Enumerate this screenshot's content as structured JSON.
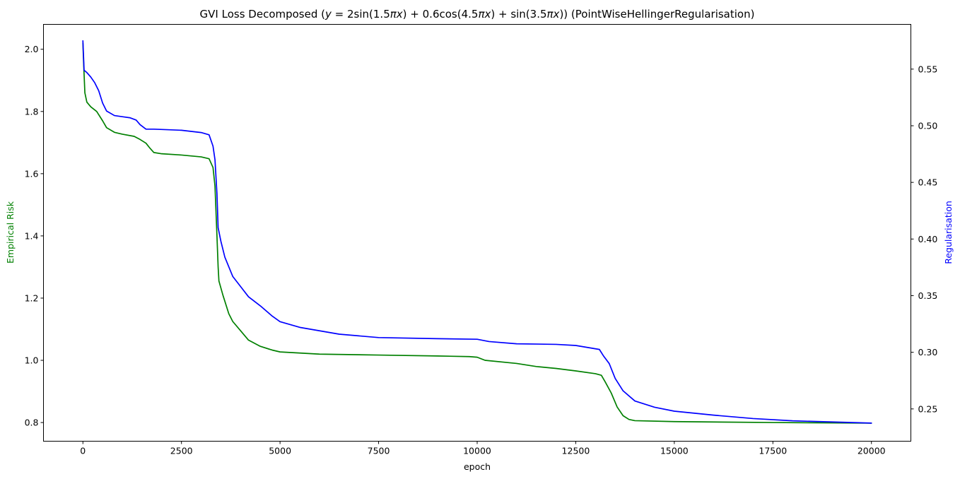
{
  "chart_data": {
    "type": "line",
    "title": "GVI Loss Decomposed ($y=2\\sin(1.5\\pi x)+0.6\\cos(4.5\\pi x)+\\sin(3.5\\pi x)$) (PointWiseHellingerRegularisation)",
    "title_display": {
      "prefix": "GVI Loss Decomposed (",
      "suffix": ") (PointWiseHellingerRegularisation)"
    },
    "xlabel": "epoch",
    "ylabel_left": "Empirical Risk",
    "ylabel_right": "Regularisation",
    "xlim": [
      -1000,
      21000
    ],
    "ylim_left": [
      0.74,
      2.08
    ],
    "ylim_right": [
      0.2215,
      0.5895
    ],
    "xticks": [
      0,
      2500,
      5000,
      7500,
      10000,
      12500,
      15000,
      17500,
      20000
    ],
    "yticks_left": [
      0.8,
      1.0,
      1.2,
      1.4,
      1.6,
      1.8,
      2.0
    ],
    "yticks_right": [
      0.25,
      0.3,
      0.35,
      0.4,
      0.45,
      0.5,
      0.55
    ],
    "grid": false,
    "series": [
      {
        "name": "Empirical Risk",
        "axis": "left",
        "color": "#008000",
        "points": [
          [
            0,
            2.02
          ],
          [
            20,
            1.95
          ],
          [
            50,
            1.86
          ],
          [
            100,
            1.83
          ],
          [
            200,
            1.815
          ],
          [
            350,
            1.8
          ],
          [
            500,
            1.77
          ],
          [
            600,
            1.748
          ],
          [
            800,
            1.733
          ],
          [
            1000,
            1.727
          ],
          [
            1300,
            1.72
          ],
          [
            1450,
            1.71
          ],
          [
            1600,
            1.698
          ],
          [
            1700,
            1.682
          ],
          [
            1800,
            1.668
          ],
          [
            2000,
            1.664
          ],
          [
            2500,
            1.66
          ],
          [
            3000,
            1.654
          ],
          [
            3200,
            1.648
          ],
          [
            3300,
            1.62
          ],
          [
            3350,
            1.56
          ],
          [
            3400,
            1.4
          ],
          [
            3430,
            1.3
          ],
          [
            3450,
            1.255
          ],
          [
            3550,
            1.21
          ],
          [
            3700,
            1.15
          ],
          [
            3800,
            1.125
          ],
          [
            4000,
            1.095
          ],
          [
            4200,
            1.065
          ],
          [
            4500,
            1.045
          ],
          [
            4800,
            1.033
          ],
          [
            5000,
            1.027
          ],
          [
            6000,
            1.02
          ],
          [
            7500,
            1.017
          ],
          [
            9000,
            1.014
          ],
          [
            9800,
            1.012
          ],
          [
            10000,
            1.01
          ],
          [
            10200,
            1.0
          ],
          [
            11000,
            0.99
          ],
          [
            11500,
            0.98
          ],
          [
            12000,
            0.974
          ],
          [
            12500,
            0.966
          ],
          [
            13000,
            0.957
          ],
          [
            13150,
            0.952
          ],
          [
            13250,
            0.93
          ],
          [
            13400,
            0.895
          ],
          [
            13550,
            0.85
          ],
          [
            13700,
            0.822
          ],
          [
            13850,
            0.81
          ],
          [
            14000,
            0.806
          ],
          [
            15000,
            0.803
          ],
          [
            17500,
            0.8
          ],
          [
            20000,
            0.798
          ]
        ]
      },
      {
        "name": "Regularisation",
        "axis": "right",
        "color": "#0000ff",
        "points": [
          [
            0,
            0.575
          ],
          [
            30,
            0.549
          ],
          [
            100,
            0.547
          ],
          [
            200,
            0.543
          ],
          [
            300,
            0.538
          ],
          [
            400,
            0.531
          ],
          [
            500,
            0.52
          ],
          [
            600,
            0.513
          ],
          [
            800,
            0.509
          ],
          [
            1000,
            0.508
          ],
          [
            1200,
            0.507
          ],
          [
            1350,
            0.505
          ],
          [
            1450,
            0.501
          ],
          [
            1600,
            0.497
          ],
          [
            1800,
            0.497
          ],
          [
            2500,
            0.496
          ],
          [
            3000,
            0.494
          ],
          [
            3200,
            0.492
          ],
          [
            3300,
            0.482
          ],
          [
            3350,
            0.47
          ],
          [
            3400,
            0.44
          ],
          [
            3430,
            0.41
          ],
          [
            3500,
            0.398
          ],
          [
            3600,
            0.384
          ],
          [
            3800,
            0.367
          ],
          [
            4000,
            0.358
          ],
          [
            4200,
            0.349
          ],
          [
            4500,
            0.341
          ],
          [
            4800,
            0.332
          ],
          [
            5000,
            0.327
          ],
          [
            5500,
            0.322
          ],
          [
            6500,
            0.316
          ],
          [
            7500,
            0.313
          ],
          [
            9000,
            0.312
          ],
          [
            10000,
            0.3115
          ],
          [
            10300,
            0.3095
          ],
          [
            11000,
            0.3075
          ],
          [
            12000,
            0.307
          ],
          [
            12500,
            0.306
          ],
          [
            13100,
            0.3025
          ],
          [
            13200,
            0.297
          ],
          [
            13350,
            0.29
          ],
          [
            13500,
            0.277
          ],
          [
            13700,
            0.266
          ],
          [
            14000,
            0.257
          ],
          [
            14500,
            0.2515
          ],
          [
            15000,
            0.248
          ],
          [
            16000,
            0.2445
          ],
          [
            17000,
            0.2415
          ],
          [
            18000,
            0.2395
          ],
          [
            20000,
            0.2375
          ]
        ]
      }
    ]
  }
}
